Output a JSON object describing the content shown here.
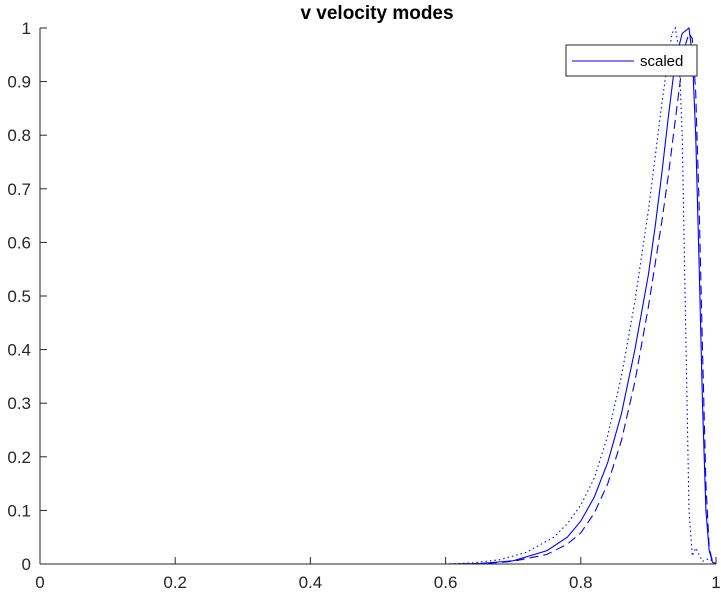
{
  "chart_data": {
    "type": "line",
    "title": "v velocity modes",
    "xlabel": "",
    "ylabel": "",
    "xlim": [
      0,
      1
    ],
    "ylim": [
      0,
      1
    ],
    "xticks": [
      "0",
      "0.2",
      "0.4",
      "0.6",
      "0.8",
      "1"
    ],
    "yticks": [
      "0",
      "0.1",
      "0.2",
      "0.3",
      "0.4",
      "0.5",
      "0.6",
      "0.7",
      "0.8",
      "0.9",
      "1"
    ],
    "grid": false,
    "legend": {
      "position": "top-right",
      "entries": [
        "scaled"
      ]
    },
    "line_color": "#0000ff",
    "series": [
      {
        "name": "scaled",
        "style": "solid",
        "x": [
          0,
          0.6,
          0.65,
          0.7,
          0.75,
          0.78,
          0.8,
          0.82,
          0.84,
          0.86,
          0.88,
          0.9,
          0.91,
          0.92,
          0.93,
          0.94,
          0.95,
          0.96,
          0.965,
          0.97,
          0.975,
          0.98,
          0.985,
          0.99,
          0.995,
          1.0
        ],
        "y": [
          0,
          0,
          0.001,
          0.006,
          0.025,
          0.05,
          0.08,
          0.125,
          0.19,
          0.28,
          0.4,
          0.54,
          0.63,
          0.73,
          0.84,
          0.94,
          0.99,
          1.0,
          0.95,
          0.8,
          0.56,
          0.3,
          0.1,
          0.025,
          0.003,
          0
        ]
      },
      {
        "style": "dashed",
        "x": [
          0,
          0.62,
          0.66,
          0.7,
          0.75,
          0.78,
          0.8,
          0.82,
          0.84,
          0.86,
          0.88,
          0.9,
          0.92,
          0.93,
          0.94,
          0.95,
          0.955,
          0.96,
          0.965,
          0.97,
          0.975,
          0.98,
          0.985,
          0.99,
          0.995,
          1.0
        ],
        "y": [
          0,
          0,
          0.001,
          0.005,
          0.018,
          0.037,
          0.058,
          0.095,
          0.15,
          0.23,
          0.34,
          0.48,
          0.64,
          0.73,
          0.83,
          0.93,
          0.97,
          0.99,
          0.98,
          0.88,
          0.67,
          0.4,
          0.15,
          0.03,
          0.004,
          0
        ]
      },
      {
        "style": "dotted",
        "x": [
          0,
          0.6,
          0.64,
          0.68,
          0.72,
          0.76,
          0.78,
          0.8,
          0.82,
          0.84,
          0.86,
          0.88,
          0.9,
          0.91,
          0.92,
          0.93,
          0.935,
          0.94,
          0.945,
          0.95,
          0.955,
          0.96,
          0.965,
          0.97,
          0.98,
          0.99,
          1.0
        ],
        "y": [
          0,
          0,
          0.002,
          0.008,
          0.022,
          0.05,
          0.075,
          0.11,
          0.16,
          0.24,
          0.35,
          0.49,
          0.66,
          0.76,
          0.86,
          0.95,
          0.99,
          1.0,
          0.96,
          0.8,
          0.45,
          0.1,
          0.015,
          0.03,
          0.005,
          0.01,
          0
        ]
      }
    ]
  }
}
